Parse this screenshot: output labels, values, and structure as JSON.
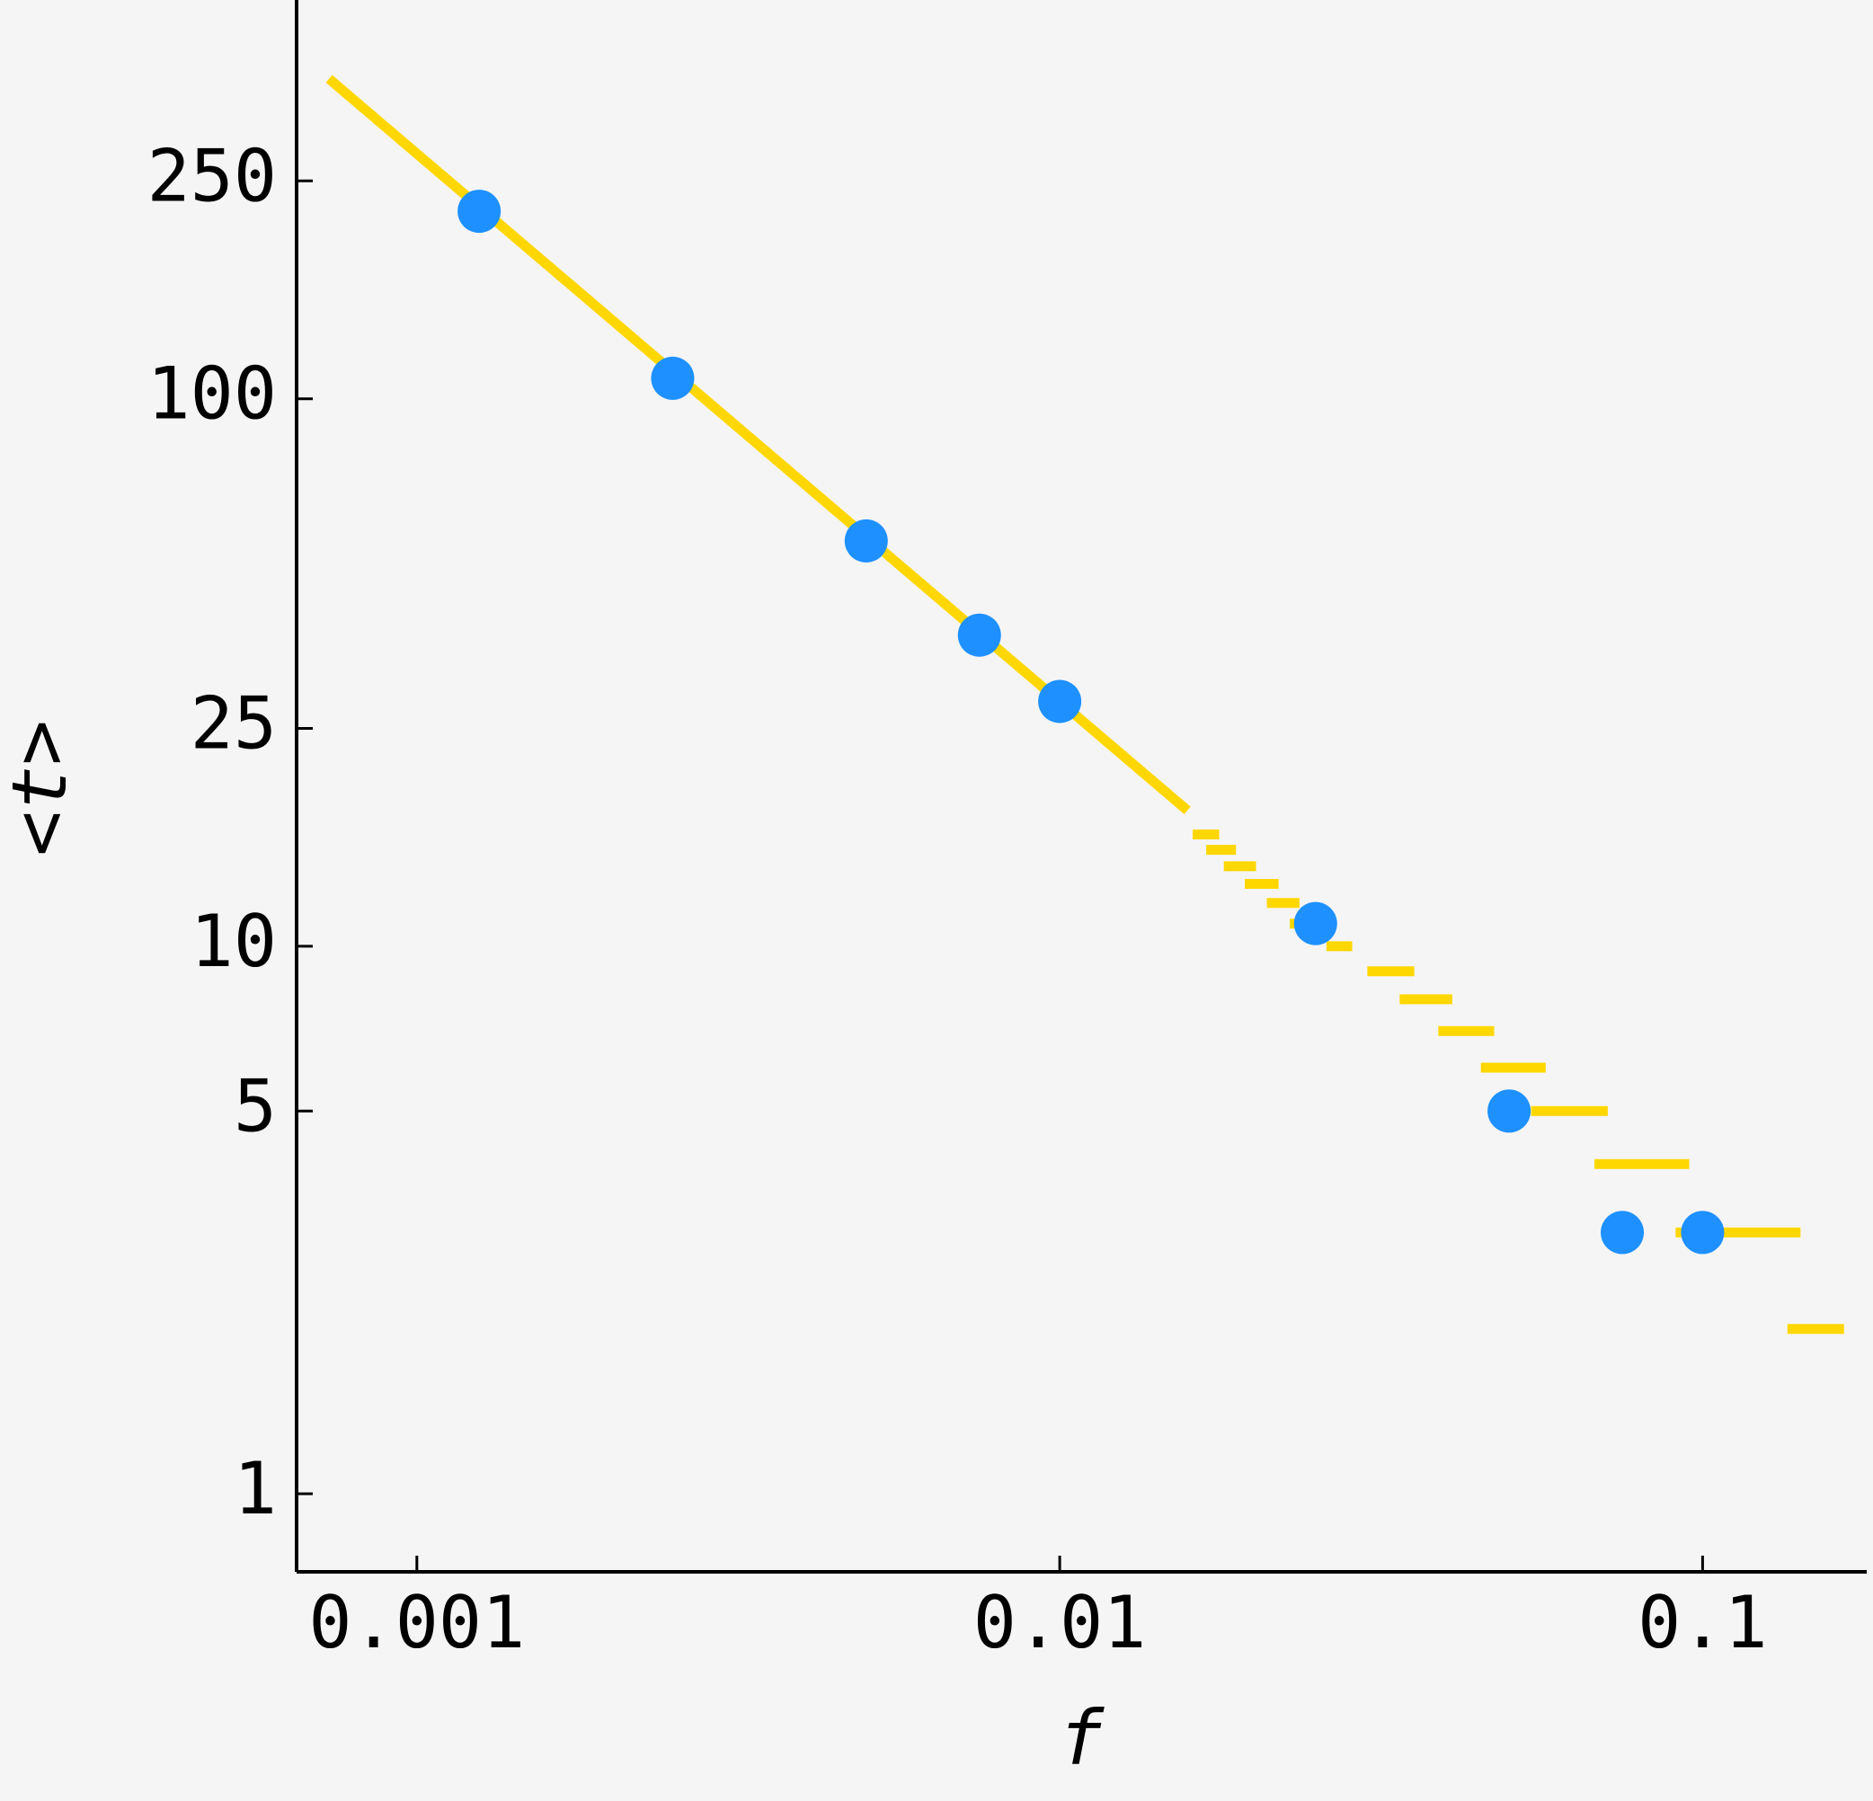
{
  "chart_data": {
    "type": "line",
    "x_label": "f",
    "y_label": "<t>",
    "xscale": "log",
    "yscale": "log",
    "xlim": [
      0.00065,
      0.18
    ],
    "ylim": [
      0.72,
      535
    ],
    "xticks": [
      0.001,
      0.01,
      0.1
    ],
    "yticks": [
      1,
      5,
      10,
      25,
      100,
      250
    ],
    "series": [
      {
        "type": "line",
        "color": "#ffd700",
        "x": [
          0.00073,
          0.0158,
          null,
          0.0161,
          0.0177,
          null,
          0.0169,
          0.0188,
          null,
          0.018,
          0.0202,
          null,
          0.0194,
          0.0219,
          null,
          0.021,
          0.0236,
          null,
          0.0228,
          0.0258,
          null,
          0.026,
          0.0285,
          null,
          0.0301,
          0.0356,
          null,
          0.0338,
          0.0408,
          null,
          0.0388,
          0.0474,
          null,
          0.0452,
          0.057,
          null,
          0.0541,
          0.0712,
          null,
          0.0679,
          0.0953,
          null,
          0.0908,
          0.142,
          null,
          0.1355,
          0.166
        ],
        "y": [
          384,
          17.7,
          null,
          16,
          16,
          null,
          15,
          15,
          null,
          14,
          14,
          null,
          13,
          13,
          null,
          12,
          12,
          null,
          11,
          11,
          null,
          10,
          10,
          null,
          9,
          9,
          null,
          8,
          8,
          null,
          7,
          7,
          null,
          6,
          6,
          null,
          5,
          5,
          null,
          4,
          4,
          null,
          3,
          3,
          null,
          2,
          2
        ]
      },
      {
        "type": "scatter",
        "color": "#1e90ff",
        "x": [
          0.00125,
          0.0025,
          0.005,
          0.0075,
          0.01,
          0.025,
          0.05,
          0.075,
          0.1
        ],
        "y": [
          220,
          109,
          55,
          37,
          28,
          11,
          5,
          3,
          3
        ]
      }
    ]
  }
}
